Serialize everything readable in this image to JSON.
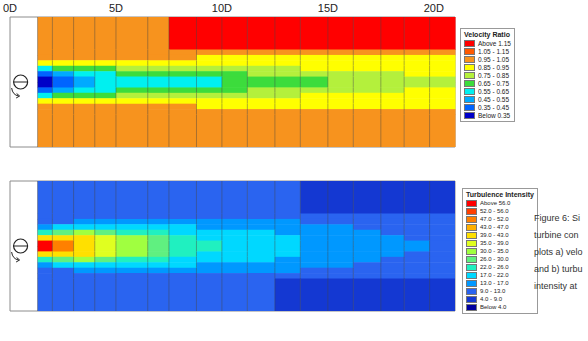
{
  "chart_data": [
    {
      "type": "heatmap",
      "xlim": [
        0,
        21
      ],
      "ylim": [
        -3,
        3
      ],
      "xticks": [
        {
          "value": 0,
          "label": "0D"
        },
        {
          "value": 5,
          "label": "5D"
        },
        {
          "value": 10,
          "label": "10D"
        },
        {
          "value": 15,
          "label": "15D"
        },
        {
          "value": 20,
          "label": "20D"
        }
      ],
      "tick_labels": "x",
      "x_edges": [
        1.3,
        2,
        3,
        4,
        5,
        6.5,
        7.5,
        8.8,
        10,
        11.2,
        12.5,
        13.7,
        15,
        16.2,
        17.5,
        18.6,
        19.8,
        21
      ],
      "y_edges": [
        3,
        1.5,
        1.25,
        1,
        0.75,
        0.5,
        0.25,
        0,
        -0.25,
        -0.5,
        -0.75,
        -1,
        -1.25,
        -1.5,
        -3
      ],
      "cells": [
        [
          1,
          1,
          1,
          1,
          1,
          1,
          1.2,
          1.2,
          1.2,
          1.2,
          1.2,
          1.2,
          1.2,
          1.2,
          1.2,
          1.2,
          1.2
        ],
        [
          1,
          1,
          1,
          1,
          1,
          1,
          1,
          1,
          1,
          1,
          1,
          1,
          1,
          1,
          1,
          1,
          1
        ],
        [
          1,
          1,
          1,
          1,
          1,
          1,
          1,
          0.94,
          0.94,
          0.93,
          0.93,
          0.93,
          0.93,
          0.94,
          0.94,
          0.94,
          0.94
        ],
        [
          0.9,
          0.88,
          0.87,
          0.87,
          0.88,
          0.88,
          0.88,
          0.89,
          0.89,
          0.9,
          0.9,
          0.9,
          0.91,
          0.91,
          0.92,
          0.92,
          0.92
        ],
        [
          0.6,
          0.65,
          0.7,
          0.74,
          0.76,
          0.78,
          0.8,
          0.8,
          0.82,
          0.82,
          0.84,
          0.85,
          0.86,
          0.87,
          0.88,
          0.88,
          0.89
        ],
        [
          0.4,
          0.5,
          0.58,
          0.62,
          0.65,
          0.68,
          0.7,
          0.72,
          0.74,
          0.76,
          0.78,
          0.8,
          0.82,
          0.83,
          0.84,
          0.85,
          0.86
        ],
        [
          0.3,
          0.4,
          0.5,
          0.58,
          0.6,
          0.62,
          0.63,
          0.64,
          0.68,
          0.7,
          0.72,
          0.74,
          0.78,
          0.8,
          0.82,
          0.83,
          0.84
        ],
        [
          0.3,
          0.4,
          0.5,
          0.58,
          0.6,
          0.62,
          0.63,
          0.64,
          0.68,
          0.7,
          0.72,
          0.74,
          0.78,
          0.8,
          0.82,
          0.83,
          0.84
        ],
        [
          0.4,
          0.5,
          0.58,
          0.62,
          0.65,
          0.68,
          0.7,
          0.72,
          0.74,
          0.76,
          0.78,
          0.8,
          0.82,
          0.83,
          0.84,
          0.85,
          0.86
        ],
        [
          0.6,
          0.65,
          0.7,
          0.74,
          0.76,
          0.78,
          0.8,
          0.8,
          0.82,
          0.82,
          0.84,
          0.85,
          0.86,
          0.87,
          0.88,
          0.88,
          0.89
        ],
        [
          0.9,
          0.88,
          0.87,
          0.87,
          0.88,
          0.88,
          0.88,
          0.89,
          0.89,
          0.9,
          0.9,
          0.9,
          0.91,
          0.91,
          0.92,
          0.92,
          0.92
        ],
        [
          1,
          1,
          1,
          1,
          1,
          1,
          1,
          0.94,
          0.94,
          0.93,
          0.93,
          0.93,
          0.93,
          0.94,
          0.94,
          0.94,
          0.94
        ],
        [
          1,
          1,
          1,
          1,
          1,
          1,
          1,
          1,
          1,
          1,
          1,
          1,
          1,
          1,
          1,
          1,
          1
        ],
        [
          1,
          1,
          1,
          1,
          1,
          1,
          1,
          1,
          1,
          1,
          1,
          1,
          1,
          1,
          1,
          1,
          1
        ]
      ],
      "color_bar": {
        "title": "Velocity Ratio",
        "bins": [
          {
            "label": "Above 1.15",
            "min": 1.15,
            "max": null,
            "color": "#ff0000"
          },
          {
            "label": "1.05 - 1.15",
            "min": 1.05,
            "max": 1.15,
            "color": "#ff5a00"
          },
          {
            "label": "0.95 - 1.05",
            "min": 0.95,
            "max": 1.05,
            "color": "#f7931e"
          },
          {
            "label": "0.85 - 0.95",
            "min": 0.85,
            "max": 0.95,
            "color": "#ffff00"
          },
          {
            "label": "0.75 - 0.85",
            "min": 0.75,
            "max": 0.85,
            "color": "#b4f03c"
          },
          {
            "label": "0.65 - 0.75",
            "min": 0.65,
            "max": 0.75,
            "color": "#3cdc3c"
          },
          {
            "label": "0.55 - 0.65",
            "min": 0.55,
            "max": 0.65,
            "color": "#00f0f0"
          },
          {
            "label": "0.45 - 0.55",
            "min": 0.45,
            "max": 0.55,
            "color": "#00aaff"
          },
          {
            "label": "0.35 - 0.45",
            "min": 0.35,
            "max": 0.45,
            "color": "#0064ff"
          },
          {
            "label": "Below 0.35",
            "min": null,
            "max": 0.35,
            "color": "#0000c8"
          }
        ]
      }
    },
    {
      "type": "heatmap",
      "xlim": [
        0,
        21
      ],
      "ylim": [
        -3,
        3
      ],
      "tick_labels": false,
      "x_edges": [
        1.3,
        2,
        3,
        4,
        5,
        6.5,
        7.5,
        8.8,
        10,
        11.2,
        12.5,
        13.7,
        15,
        16.2,
        17.5,
        18.6,
        19.8,
        21
      ],
      "y_edges": [
        3,
        1.5,
        1.25,
        1,
        0.75,
        0.5,
        0.25,
        0,
        -0.25,
        -0.5,
        -0.75,
        -1,
        -1.25,
        -1.5,
        -3
      ],
      "cells": [
        [
          11,
          11,
          11,
          11,
          11,
          11,
          11,
          11,
          11,
          11,
          11,
          7,
          7,
          7,
          7,
          7,
          7
        ],
        [
          11,
          11,
          11,
          11,
          11,
          11,
          11,
          11,
          11,
          11,
          11,
          11,
          11,
          11,
          11,
          11,
          11
        ],
        [
          12,
          12,
          13,
          14,
          14,
          14,
          14,
          14,
          14,
          13.5,
          13,
          12.5,
          12,
          12,
          12,
          11.5,
          11.5
        ],
        [
          15,
          18,
          20,
          20,
          19,
          18,
          17,
          16,
          16,
          15,
          15,
          14,
          13,
          12.5,
          12,
          12,
          12
        ],
        [
          25,
          28,
          30,
          28,
          25,
          22,
          20,
          19,
          18,
          17,
          16,
          14,
          13.5,
          13,
          12.5,
          12,
          12
        ],
        [
          40,
          42,
          40,
          35,
          30,
          26,
          23,
          21,
          19,
          18,
          17,
          15,
          14,
          13.5,
          13,
          12.5,
          12
        ],
        [
          58,
          48,
          42,
          38,
          33,
          28,
          25,
          22,
          20,
          19,
          18,
          16,
          15,
          14,
          13.5,
          13,
          12.5
        ],
        [
          58,
          48,
          42,
          38,
          33,
          28,
          25,
          22,
          20,
          19,
          18,
          16,
          15,
          14,
          13.5,
          13,
          12.5
        ],
        [
          40,
          42,
          40,
          35,
          30,
          26,
          23,
          21,
          19,
          18,
          17,
          15,
          14,
          13.5,
          13,
          12.5,
          12
        ],
        [
          25,
          28,
          30,
          28,
          25,
          22,
          20,
          19,
          18,
          17,
          16,
          14,
          13.5,
          13,
          12.5,
          12,
          12
        ],
        [
          15,
          18,
          20,
          20,
          19,
          18,
          17,
          16,
          16,
          15,
          15,
          14,
          13,
          12.5,
          12,
          12,
          12
        ],
        [
          12,
          12,
          13,
          14,
          14,
          14,
          14,
          14,
          14,
          13.5,
          13,
          12.5,
          12,
          12,
          12,
          11.5,
          11.5
        ],
        [
          11,
          11,
          11,
          11,
          11,
          11,
          11,
          11,
          11,
          11,
          11,
          11,
          11,
          11,
          11,
          11,
          11
        ],
        [
          11,
          11,
          11,
          11,
          11,
          11,
          11,
          11,
          11,
          11,
          8,
          8,
          8,
          8,
          8,
          8,
          8
        ]
      ],
      "color_bar": {
        "title": "Turbulence Intensity",
        "bins": [
          {
            "label": "Above 56.0",
            "min": 56,
            "max": null,
            "color": "#ff0000"
          },
          {
            "label": "52.0 - 56.0",
            "min": 52,
            "max": 56,
            "color": "#ff4000"
          },
          {
            "label": "47.0 - 52.0",
            "min": 47,
            "max": 52,
            "color": "#ff8000"
          },
          {
            "label": "43.0 - 47.0",
            "min": 43,
            "max": 47,
            "color": "#ffb000"
          },
          {
            "label": "39.0 - 43.0",
            "min": 39,
            "max": 43,
            "color": "#ffe000"
          },
          {
            "label": "35.0 - 39.0",
            "min": 35,
            "max": 39,
            "color": "#e0ff20"
          },
          {
            "label": "30.0 - 35.0",
            "min": 30,
            "max": 35,
            "color": "#a0ff40"
          },
          {
            "label": "26.0 - 30.0",
            "min": 26,
            "max": 30,
            "color": "#60f080"
          },
          {
            "label": "22.0 - 26.0",
            "min": 22,
            "max": 26,
            "color": "#20f0c0"
          },
          {
            "label": "17.0 - 22.0",
            "min": 17,
            "max": 22,
            "color": "#00d8ff"
          },
          {
            "label": "13.0 - 17.0",
            "min": 13,
            "max": 17,
            "color": "#0098ff"
          },
          {
            "label": "9.0 - 13.0",
            "min": 9,
            "max": 13,
            "color": "#2a64f0"
          },
          {
            "label": "4.0 - 9.0",
            "min": 4,
            "max": 9,
            "color": "#1438d2"
          },
          {
            "label": "Below 4.0",
            "min": null,
            "max": 4,
            "color": "#0000a0"
          }
        ]
      }
    }
  ],
  "caption": [
    "Figure 6: Si",
    "turbine con",
    "plots a) velo",
    "and b) turbu",
    "intensity at"
  ]
}
